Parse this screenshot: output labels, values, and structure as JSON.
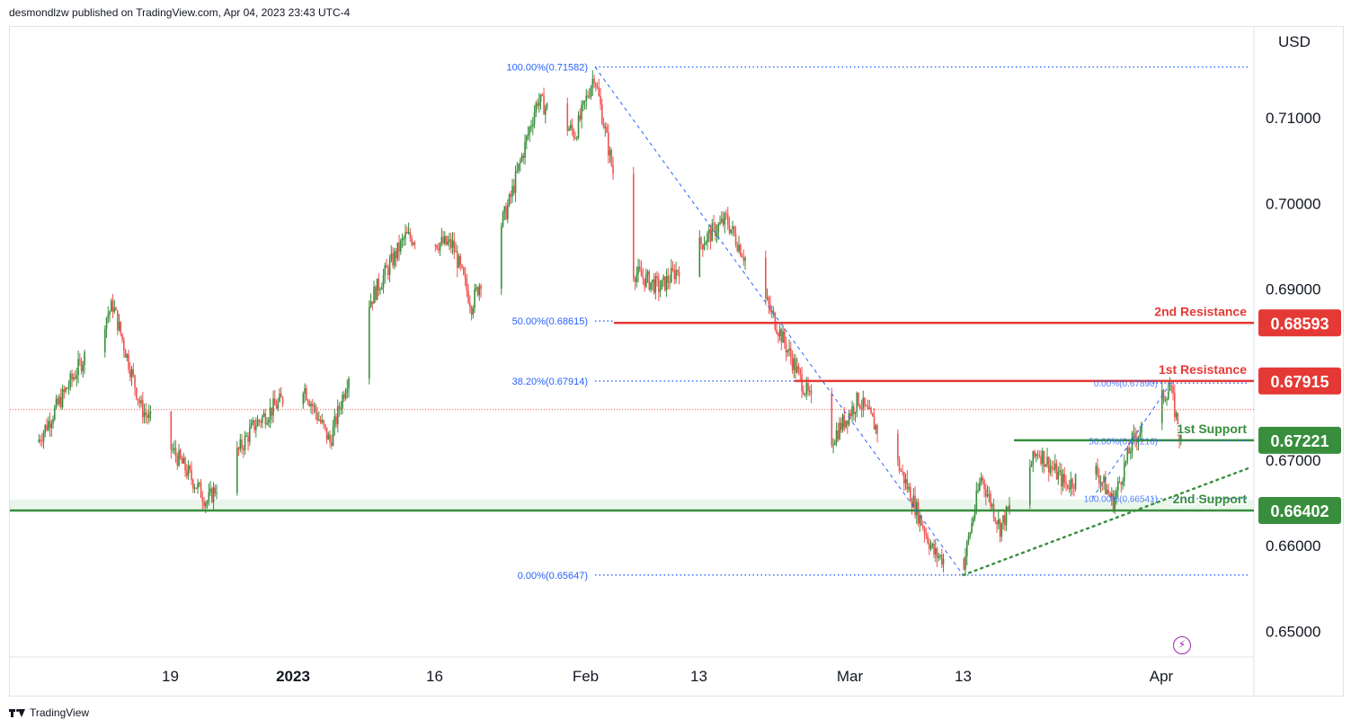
{
  "header": {
    "publisher_text": "desmondlzw published on TradingView.com, Apr 04, 2023 23:43 UTC-4"
  },
  "footer": {
    "brand": "TradingView"
  },
  "icons": {
    "brand_logo": "tradingview-logo-icon",
    "bolt": "lightning-bolt-icon"
  },
  "colors": {
    "up_candle": "#388e3c",
    "down_candle": "#ef5350",
    "resistance": "#e53935",
    "support": "#388e3c",
    "fib": "#2962ff",
    "zone": "#e8f5e9"
  },
  "chart_data": {
    "type": "candlestick",
    "y_axis_label": "USD",
    "ylim": [
      0.6469,
      0.7205
    ],
    "y_ticks": [
      {
        "value": 0.71,
        "label": "0.71000"
      },
      {
        "value": 0.7,
        "label": "0.70000"
      },
      {
        "value": 0.69,
        "label": "0.69000"
      },
      {
        "value": 0.67,
        "label": "0.67000"
      },
      {
        "value": 0.66,
        "label": "0.66000"
      },
      {
        "value": 0.65,
        "label": "0.65000"
      }
    ],
    "x_ticks": [
      {
        "label": "19",
        "date": "2022-12-19",
        "bold": false
      },
      {
        "label": "2023",
        "date": "2023-01-01",
        "bold": true
      },
      {
        "label": "16",
        "date": "2023-01-16",
        "bold": false
      },
      {
        "label": "Feb",
        "date": "2023-02-01",
        "bold": false
      },
      {
        "label": "13",
        "date": "2023-02-13",
        "bold": false
      },
      {
        "label": "Mar",
        "date": "2023-03-01",
        "bold": false
      },
      {
        "label": "13",
        "date": "2023-03-13",
        "bold": false
      },
      {
        "label": "Apr",
        "date": "2023-04-03",
        "bold": false
      }
    ],
    "key_points": [
      {
        "date": "2022-12-05",
        "close": 0.672
      },
      {
        "date": "2022-12-09",
        "close": 0.68
      },
      {
        "date": "2022-12-13",
        "close": 0.688
      },
      {
        "date": "2022-12-16",
        "close": 0.676
      },
      {
        "date": "2022-12-20",
        "close": 0.67
      },
      {
        "date": "2022-12-23",
        "close": 0.665
      },
      {
        "date": "2022-12-28",
        "close": 0.674
      },
      {
        "date": "2023-01-02",
        "close": 0.679
      },
      {
        "date": "2023-01-05",
        "close": 0.672
      },
      {
        "date": "2023-01-09",
        "close": 0.688
      },
      {
        "date": "2023-01-13",
        "close": 0.696
      },
      {
        "date": "2023-01-18",
        "close": 0.695
      },
      {
        "date": "2023-01-20",
        "close": 0.688
      },
      {
        "date": "2023-01-24",
        "close": 0.7
      },
      {
        "date": "2023-01-27",
        "close": 0.712
      },
      {
        "date": "2023-01-31",
        "close": 0.708
      },
      {
        "date": "2023-02-02",
        "close": 0.715
      },
      {
        "date": "2023-02-06",
        "close": 0.692
      },
      {
        "date": "2023-02-09",
        "close": 0.69
      },
      {
        "date": "2023-02-14",
        "close": 0.696
      },
      {
        "date": "2023-02-16",
        "close": 0.698
      },
      {
        "date": "2023-02-20",
        "close": 0.689
      },
      {
        "date": "2023-02-24",
        "close": 0.679
      },
      {
        "date": "2023-02-27",
        "close": 0.672
      },
      {
        "date": "2023-03-02",
        "close": 0.677
      },
      {
        "date": "2023-03-06",
        "close": 0.67
      },
      {
        "date": "2023-03-10",
        "close": 0.659
      },
      {
        "date": "2023-03-13",
        "close": 0.657
      },
      {
        "date": "2023-03-15",
        "close": 0.668
      },
      {
        "date": "2023-03-17",
        "close": 0.662
      },
      {
        "date": "2023-03-21",
        "close": 0.671
      },
      {
        "date": "2023-03-24",
        "close": 0.667
      },
      {
        "date": "2023-03-27",
        "close": 0.669
      },
      {
        "date": "2023-03-29",
        "close": 0.665
      },
      {
        "date": "2023-03-31",
        "close": 0.672
      },
      {
        "date": "2023-04-04",
        "close": 0.6785
      },
      {
        "date": "2023-04-05",
        "close": 0.673
      }
    ],
    "annotations": {
      "horizontal_levels": [
        {
          "name": "2nd Resistance",
          "value": 0.68593,
          "value_label": "0.68593",
          "color": "#e53935"
        },
        {
          "name": "1st Resistance",
          "value": 0.67915,
          "value_label": "0.67915",
          "color": "#e53935"
        },
        {
          "name": "1st Support",
          "value": 0.67221,
          "value_label": "0.67221",
          "color": "#388e3c"
        },
        {
          "name": "2nd Support",
          "value": 0.66402,
          "value_label": "0.66402",
          "color": "#388e3c"
        }
      ],
      "support_zone": [
        0.66402,
        0.6653
      ],
      "current_price": 0.6758,
      "fib_left": {
        "from_date": "2023-02-02",
        "to_date": "2023-03-13",
        "levels": [
          {
            "label": "100.00%(0.71582)",
            "value": 0.71582
          },
          {
            "label": "50.00%(0.68615)",
            "value": 0.68615
          },
          {
            "label": "38.20%(0.67914)",
            "value": 0.67914
          },
          {
            "label": "0.00%(0.65647)",
            "value": 0.65647
          }
        ]
      },
      "fib_right": {
        "from_date": "2023-03-28",
        "to_date": "2023-04-04",
        "levels": [
          {
            "label": "0.00%(0.67890)",
            "value": 0.6789
          },
          {
            "label": "50.00%(0.67216)",
            "value": 0.67216
          },
          {
            "label": "100.00%(0.66541)",
            "value": 0.66541
          }
        ]
      },
      "trendline": {
        "from_date": "2023-03-13",
        "from_value": 0.65647,
        "to_date": "2023-04-12",
        "to_value": 0.669
      }
    }
  }
}
